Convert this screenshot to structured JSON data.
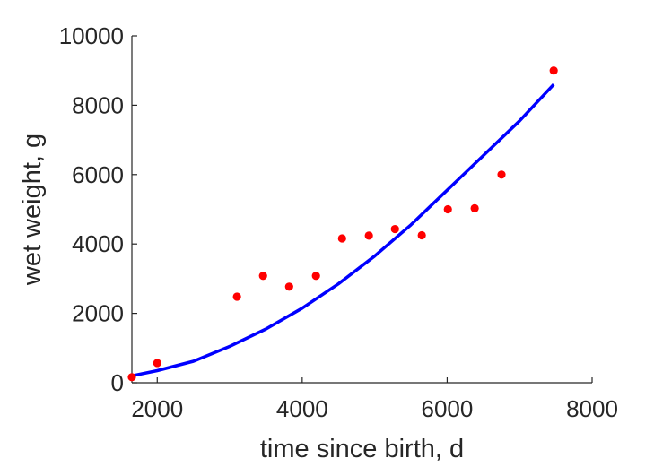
{
  "chart_data": {
    "type": "scatter",
    "title": "",
    "xlabel": "time since birth, d",
    "ylabel": "wet weight, g",
    "xlim": [
      1650,
      8000
    ],
    "ylim": [
      0,
      10000
    ],
    "xticks": [
      2000,
      4000,
      6000,
      8000
    ],
    "yticks": [
      0,
      2000,
      4000,
      6000,
      8000,
      10000
    ],
    "grid": false,
    "legend": "none",
    "series": [
      {
        "kind": "points",
        "color": "#ff0000",
        "x": [
          1650,
          2000,
          3100,
          3460,
          3820,
          4190,
          4550,
          4920,
          5280,
          5650,
          6010,
          6380,
          6750,
          7470
        ],
        "y": [
          160,
          570,
          2480,
          3080,
          2770,
          3080,
          4160,
          4240,
          4430,
          4250,
          5000,
          5030,
          6000,
          9000
        ]
      },
      {
        "kind": "line",
        "color": "#0000ff",
        "x": [
          1650,
          2000,
          2500,
          3000,
          3500,
          4000,
          4500,
          5000,
          5500,
          6000,
          6500,
          7000,
          7470
        ],
        "y": [
          200,
          350,
          620,
          1050,
          1550,
          2150,
          2850,
          3650,
          4550,
          5550,
          6550,
          7550,
          8600
        ]
      }
    ]
  }
}
